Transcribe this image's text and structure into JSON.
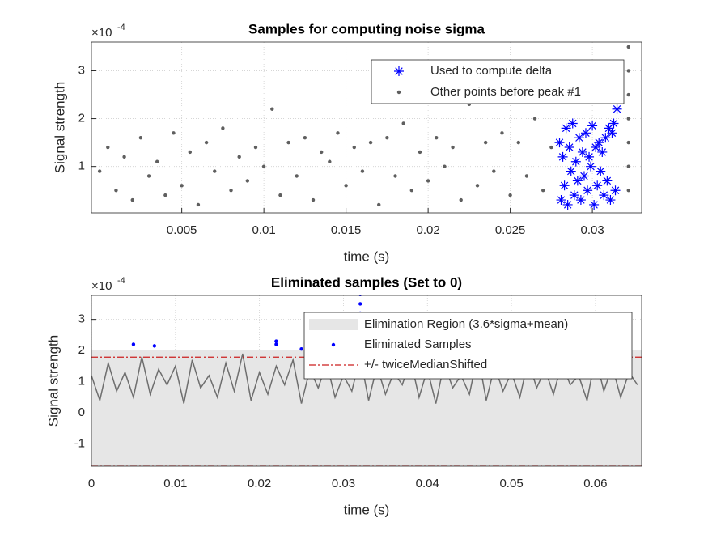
{
  "chart_data": [
    {
      "type": "scatter",
      "title": "Samples for computing noise sigma",
      "xlabel": "time (s)",
      "ylabel": "Signal strength",
      "exponent_base": "×10",
      "exponent": "-4",
      "xlim": [
        -0.0005,
        0.033
      ],
      "ylim": [
        0.03,
        3.6
      ],
      "xticks": [
        0.005,
        0.01,
        0.015,
        0.02,
        0.025,
        0.03
      ],
      "yticks": [
        1,
        2,
        3
      ],
      "grid": true,
      "legend": "northeast",
      "series": [
        {
          "name": "Used to compute delta",
          "color": "#0000ff",
          "marker": "*",
          "x": [
            0.028,
            0.0281,
            0.0282,
            0.0283,
            0.0284,
            0.0285,
            0.0286,
            0.0287,
            0.0288,
            0.0289,
            0.029,
            0.0291,
            0.0292,
            0.0293,
            0.0294,
            0.0295,
            0.0296,
            0.0297,
            0.0298,
            0.0299,
            0.03,
            0.0301,
            0.0302,
            0.0303,
            0.0304,
            0.0305,
            0.0306,
            0.0307,
            0.0308,
            0.0309,
            0.031,
            0.0311,
            0.0312,
            0.0313,
            0.0314,
            0.0315
          ],
          "values": [
            1.5,
            0.3,
            1.2,
            0.6,
            1.8,
            0.2,
            1.4,
            0.9,
            1.9,
            0.4,
            1.1,
            0.7,
            1.6,
            0.3,
            1.3,
            0.8,
            1.7,
            0.5,
            1.2,
            1.0,
            1.85,
            0.2,
            1.4,
            0.6,
            1.5,
            0.9,
            1.3,
            0.4,
            1.6,
            0.7,
            1.8,
            0.3,
            1.7,
            1.9,
            0.5,
            2.2
          ]
        },
        {
          "name": "Other points before peak #1",
          "color": "#5f5f5f",
          "marker": ".",
          "x": [
            0,
            0.0005,
            0.001,
            0.0015,
            0.002,
            0.0025,
            0.003,
            0.0035,
            0.004,
            0.0045,
            0.005,
            0.0055,
            0.006,
            0.0065,
            0.007,
            0.0075,
            0.008,
            0.0085,
            0.009,
            0.0095,
            0.01,
            0.0105,
            0.011,
            0.0115,
            0.012,
            0.0125,
            0.013,
            0.0135,
            0.014,
            0.0145,
            0.015,
            0.0155,
            0.016,
            0.0165,
            0.017,
            0.0175,
            0.018,
            0.0185,
            0.019,
            0.0195,
            0.02,
            0.0205,
            0.021,
            0.0215,
            0.022,
            0.0225,
            0.023,
            0.0235,
            0.024,
            0.0245,
            0.025,
            0.0255,
            0.026,
            0.0265,
            0.027,
            0.0275,
            0.0322,
            0.0322,
            0.0322,
            0.0322,
            0.0322,
            0.0322,
            0.0322
          ],
          "values": [
            0.9,
            1.4,
            0.5,
            1.2,
            0.3,
            1.6,
            0.8,
            1.1,
            0.4,
            1.7,
            0.6,
            1.3,
            0.2,
            1.5,
            0.9,
            1.8,
            0.5,
            1.2,
            0.7,
            1.4,
            1.0,
            2.2,
            0.4,
            1.5,
            0.8,
            1.6,
            0.3,
            1.3,
            1.1,
            1.7,
            0.6,
            1.4,
            0.9,
            1.5,
            0.2,
            1.6,
            0.8,
            1.9,
            0.5,
            1.3,
            0.7,
            1.6,
            1.0,
            1.4,
            0.3,
            2.3,
            0.6,
            1.5,
            0.9,
            1.7,
            0.4,
            1.5,
            0.8,
            2.0,
            0.5,
            1.4,
            0.5,
            1.0,
            1.5,
            2.0,
            2.5,
            3.0,
            3.5
          ]
        }
      ]
    },
    {
      "type": "line",
      "title": "Eliminated samples (Set to 0)",
      "xlabel": "time (s)",
      "ylabel": "Signal strength",
      "exponent_base": "×10",
      "exponent": "-4",
      "xlim": [
        0,
        0.0655
      ],
      "ylim": [
        -1.71,
        3.77
      ],
      "xticks": [
        0,
        0.01,
        0.02,
        0.03,
        0.04,
        0.05,
        0.06
      ],
      "yticks": [
        -1,
        0,
        1,
        2,
        3
      ],
      "grid": true,
      "legend": "northeast",
      "region": {
        "name": "Elimination Region (3.6*sigma+mean)",
        "color": "#e6e6e6",
        "lower": -1.71,
        "upper": 2.02
      },
      "series": [
        {
          "color": "#6e6e6e",
          "marker": "line",
          "x": [
            0,
            0.001,
            0.002,
            0.003,
            0.004,
            0.005,
            0.006,
            0.007,
            0.008,
            0.009,
            0.01,
            0.011,
            0.012,
            0.013,
            0.014,
            0.015,
            0.016,
            0.017,
            0.018,
            0.019,
            0.02,
            0.021,
            0.022,
            0.023,
            0.024,
            0.025,
            0.026,
            0.027,
            0.028,
            0.029,
            0.03,
            0.031,
            0.032,
            0.033,
            0.034,
            0.035,
            0.036,
            0.037,
            0.038,
            0.039,
            0.04,
            0.041,
            0.042,
            0.043,
            0.044,
            0.045,
            0.046,
            0.047,
            0.048,
            0.049,
            0.05,
            0.051,
            0.052,
            0.053,
            0.054,
            0.055,
            0.056,
            0.057,
            0.058,
            0.059,
            0.06,
            0.061,
            0.062,
            0.063,
            0.064,
            0.065
          ],
          "values": [
            1.2,
            0.4,
            1.6,
            0.7,
            1.3,
            0.5,
            1.8,
            0.6,
            1.4,
            0.9,
            1.5,
            0.3,
            1.7,
            0.8,
            1.2,
            0.5,
            1.6,
            0.7,
            1.9,
            0.4,
            1.3,
            0.6,
            1.5,
            0.9,
            1.7,
            0.3,
            1.4,
            0.8,
            1.6,
            0.5,
            1.2,
            0.7,
            1.8,
            0.4,
            1.5,
            0.6,
            1.3,
            0.9,
            1.7,
            0.5,
            1.4,
            0.3,
            1.6,
            0.8,
            1.2,
            0.6,
            1.9,
            0.4,
            1.5,
            0.7,
            1.3,
            0.5,
            1.7,
            0.8,
            1.4,
            0.6,
            1.6,
            0.9,
            1.2,
            0.4,
            1.8,
            0.7,
            1.5,
            0.5,
            1.3,
            0.9
          ]
        },
        {
          "name": "Eliminated Samples",
          "color": "#0000ff",
          "marker": ".",
          "x": [
            0.005,
            0.0075,
            0.022,
            0.022,
            0.025,
            0.0285,
            0.0305,
            0.032,
            0.032,
            0.032,
            0.032,
            0.032,
            0.059,
            0.0615
          ],
          "values": [
            2.2,
            2.15,
            2.3,
            2.2,
            2.05,
            2.05,
            2.1,
            3.8,
            3.5,
            3.2,
            2.9,
            2.5,
            2.15,
            2.05
          ]
        }
      ],
      "hlines": {
        "name": "+/- twiceMedianShifted",
        "color": "#cc1f1f",
        "values": [
          1.79,
          -1.71
        ]
      }
    }
  ]
}
